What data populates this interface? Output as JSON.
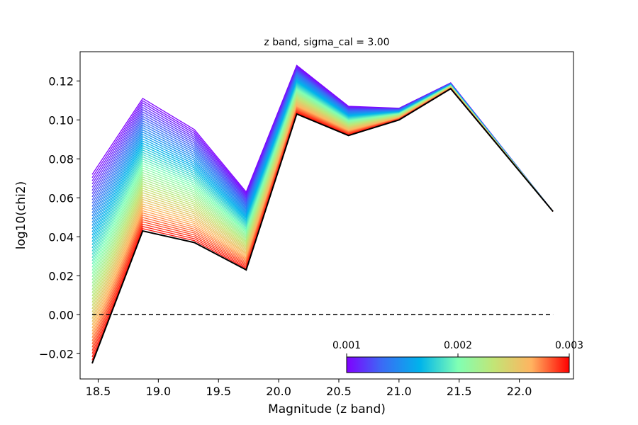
{
  "chart_data": {
    "type": "line",
    "title": "z band, sigma_cal = 3.00",
    "xlabel": "Magnitude (z band)",
    "ylabel": "log10(chi2)",
    "xlim": [
      18.35,
      22.45
    ],
    "ylim": [
      -0.033,
      0.135
    ],
    "x_ticks": [
      "18.5",
      "19.0",
      "19.5",
      "20.0",
      "20.5",
      "21.0",
      "21.5",
      "22.0"
    ],
    "y_ticks": [
      "−0.02",
      "0.00",
      "0.02",
      "0.04",
      "0.06",
      "0.08",
      "0.10",
      "0.12"
    ],
    "x": [
      18.45,
      18.87,
      19.3,
      19.73,
      20.15,
      20.58,
      21.0,
      21.43,
      22.28
    ],
    "series_top": {
      "name": "sigma 0.001",
      "values": [
        0.072,
        0.111,
        0.095,
        0.063,
        0.128,
        0.107,
        0.106,
        0.119,
        0.053
      ]
    },
    "series_bottom": {
      "name": "sigma 0.003",
      "values": [
        -0.025,
        0.043,
        0.037,
        0.023,
        0.103,
        0.092,
        0.1,
        0.116,
        0.053
      ]
    },
    "n_series": 60,
    "reference_line": {
      "y": 0.0,
      "style": "dashed",
      "color": "#000000"
    },
    "colormap": "rainbow",
    "colorbar": {
      "ticks": [
        "0.001",
        "0.002",
        "0.003"
      ],
      "range": [
        0.001,
        0.003
      ],
      "placement": "bottom-right"
    },
    "grid": false
  }
}
